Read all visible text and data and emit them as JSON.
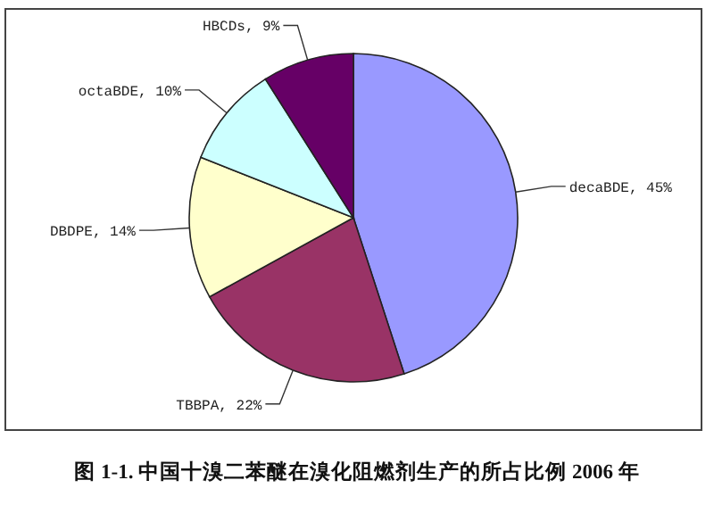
{
  "chart_data": {
    "type": "pie",
    "annotations": [
      "图 1-1. 中国十溴二苯醚在溴化阻燃剂生产的所占比例 2006 年"
    ],
    "categories": [
      "decaBDE",
      "TBBPA",
      "DBDPE",
      "octaBDE",
      "HBCDs"
    ],
    "values": [
      45,
      22,
      14,
      10,
      9
    ],
    "colors": [
      "#9999ff",
      "#993366",
      "#ffffcc",
      "#ccffff",
      "#660066"
    ],
    "value_labels": [
      "45%",
      "22%",
      "14%",
      "10%",
      "9%"
    ]
  }
}
